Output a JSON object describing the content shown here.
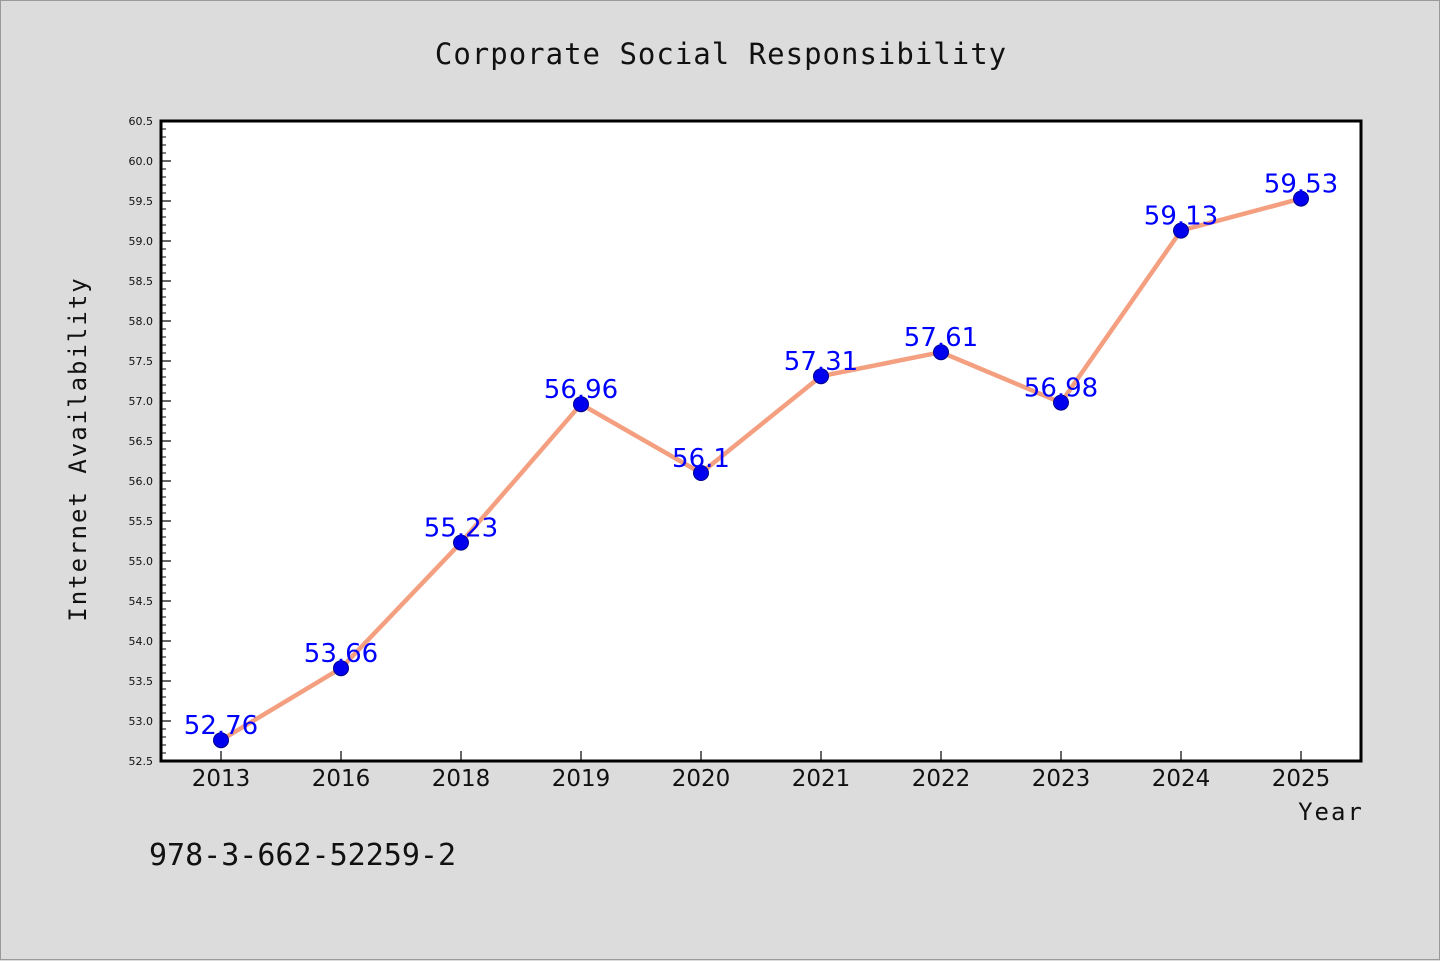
{
  "title": "Corporate Social Responsibility",
  "footnote": "978-3-662-52259-2",
  "colors": {
    "background": "#dcdcdc",
    "plot_background": "#ffffff",
    "line": "#f4a080",
    "marker": "#0000ee",
    "data_label": "#0000ff",
    "axis": "#000000"
  },
  "chart_data": {
    "type": "line",
    "title": "Corporate Social Responsibility",
    "xlabel": "Year",
    "ylabel": "Internet Availability",
    "categories": [
      "2013",
      "2016",
      "2018",
      "2019",
      "2020",
      "2021",
      "2022",
      "2023",
      "2024",
      "2025"
    ],
    "series": [
      {
        "values": [
          52.76,
          53.66,
          55.23,
          56.96,
          56.1,
          57.31,
          57.61,
          56.98,
          59.13,
          59.53
        ],
        "labels": [
          "52.76",
          "53.66",
          "55.23",
          "56.96",
          "56.1",
          "57.31",
          "57.61",
          "56.98",
          "59.13",
          "59.53"
        ]
      }
    ],
    "ylim": [
      52.5,
      60.5
    ],
    "yticks": [
      "52.5",
      "53.0",
      "53.5",
      "54.0",
      "54.5",
      "55.0",
      "55.5",
      "56.0",
      "56.5",
      "57.0",
      "57.5",
      "58.0",
      "58.5",
      "59.0",
      "59.5",
      "60.0",
      "60.5"
    ],
    "grid": false,
    "legend": "none"
  }
}
